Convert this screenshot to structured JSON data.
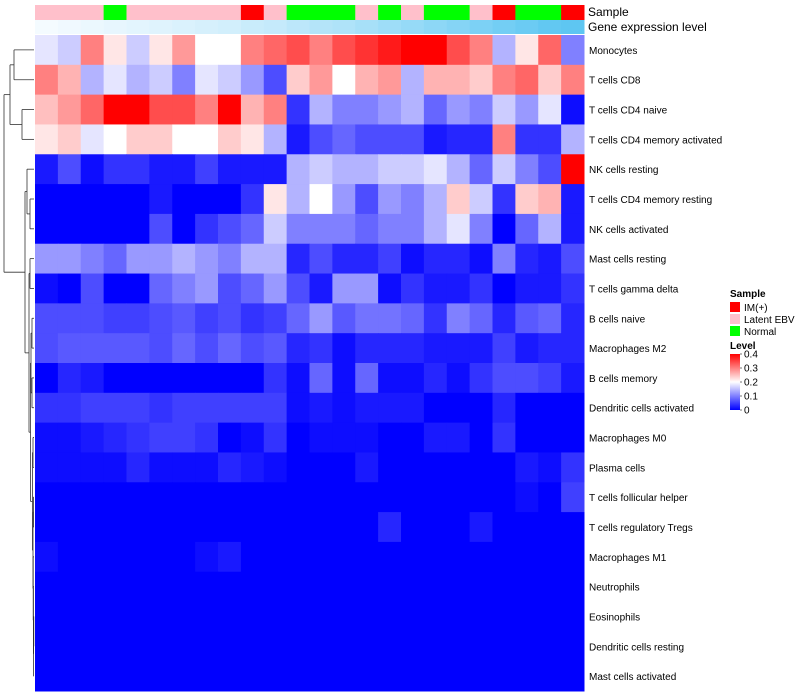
{
  "chart_data": {
    "type": "heatmap",
    "annotation_labels": {
      "sample": "Sample",
      "expression": "Gene expression level"
    },
    "columns": [
      {
        "sample": "Latent EBV",
        "expr": 0.05
      },
      {
        "sample": "Latent EBV",
        "expr": 0.06
      },
      {
        "sample": "Latent EBV",
        "expr": 0.07
      },
      {
        "sample": "Normal",
        "expr": 0.08
      },
      {
        "sample": "Latent EBV",
        "expr": 0.09
      },
      {
        "sample": "Latent EBV",
        "expr": 0.1
      },
      {
        "sample": "Latent EBV",
        "expr": 0.11
      },
      {
        "sample": "Latent EBV",
        "expr": 0.12
      },
      {
        "sample": "Latent EBV",
        "expr": 0.13
      },
      {
        "sample": "IM(+)",
        "expr": 0.15
      },
      {
        "sample": "Latent EBV",
        "expr": 0.16
      },
      {
        "sample": "Normal",
        "expr": 0.18
      },
      {
        "sample": "Normal",
        "expr": 0.2
      },
      {
        "sample": "Normal",
        "expr": 0.21
      },
      {
        "sample": "Latent EBV",
        "expr": 0.23
      },
      {
        "sample": "Normal",
        "expr": 0.25
      },
      {
        "sample": "Latent EBV",
        "expr": 0.27
      },
      {
        "sample": "Normal",
        "expr": 0.29
      },
      {
        "sample": "Normal",
        "expr": 0.31
      },
      {
        "sample": "Latent EBV",
        "expr": 0.33
      },
      {
        "sample": "IM(+)",
        "expr": 0.35
      },
      {
        "sample": "Normal",
        "expr": 0.37
      },
      {
        "sample": "Normal",
        "expr": 0.39
      },
      {
        "sample": "IM(+)",
        "expr": 0.4
      }
    ],
    "rows": [
      "Monocytes",
      "T cells CD8",
      "T cells CD4 naive",
      "T cells CD4 memory activated",
      "NK cells resting",
      "T cells CD4 memory resting",
      "NK cells activated",
      "Mast cells resting",
      "T cells gamma delta",
      "B cells naive",
      "Macrophages M2",
      "B cells memory",
      "Dendritic cells activated",
      "Macrophages M0",
      "Plasma cells",
      "T cells follicular helper",
      "T cells regulatory  Tregs",
      "Macrophages M1",
      "Neutrophils",
      "Eosinophils",
      "Dendritic cells resting",
      "Mast cells activated"
    ],
    "values": [
      [
        0.18,
        0.16,
        0.3,
        0.22,
        0.16,
        0.22,
        0.28,
        0.2,
        0.2,
        0.3,
        0.32,
        0.34,
        0.3,
        0.34,
        0.36,
        0.38,
        0.4,
        0.4,
        0.34,
        0.3,
        0.14,
        0.22,
        0.32,
        0.1
      ],
      [
        0.3,
        0.26,
        0.14,
        0.18,
        0.14,
        0.16,
        0.1,
        0.18,
        0.16,
        0.12,
        0.06,
        0.24,
        0.28,
        0.2,
        0.26,
        0.28,
        0.14,
        0.26,
        0.26,
        0.24,
        0.3,
        0.32,
        0.24,
        0.3
      ],
      [
        0.25,
        0.28,
        0.32,
        0.4,
        0.4,
        0.34,
        0.34,
        0.3,
        0.4,
        0.26,
        0.3,
        0.04,
        0.14,
        0.1,
        0.1,
        0.12,
        0.14,
        0.08,
        0.12,
        0.1,
        0.16,
        0.12,
        0.18,
        0.01
      ],
      [
        0.22,
        0.24,
        0.18,
        0.2,
        0.24,
        0.24,
        0.2,
        0.2,
        0.24,
        0.22,
        0.14,
        0.02,
        0.06,
        0.08,
        0.06,
        0.06,
        0.06,
        0.02,
        0.03,
        0.03,
        0.3,
        0.04,
        0.04,
        0.14
      ],
      [
        0.02,
        0.06,
        0.01,
        0.04,
        0.04,
        0.02,
        0.02,
        0.05,
        0.02,
        0.02,
        0.02,
        0.14,
        0.16,
        0.14,
        0.14,
        0.16,
        0.16,
        0.18,
        0.14,
        0.08,
        0.16,
        0.1,
        0.06,
        0.4
      ],
      [
        0.0,
        0.0,
        0.0,
        0.0,
        0.0,
        0.02,
        0.0,
        0.0,
        0.0,
        0.04,
        0.22,
        0.14,
        0.2,
        0.12,
        0.06,
        0.12,
        0.1,
        0.14,
        0.24,
        0.16,
        0.04,
        0.24,
        0.26,
        0.02
      ],
      [
        0.0,
        0.0,
        0.0,
        0.0,
        0.0,
        0.06,
        0.0,
        0.04,
        0.06,
        0.08,
        0.16,
        0.1,
        0.1,
        0.1,
        0.08,
        0.1,
        0.1,
        0.14,
        0.18,
        0.1,
        0.0,
        0.08,
        0.14,
        0.02
      ],
      [
        0.12,
        0.12,
        0.1,
        0.08,
        0.12,
        0.12,
        0.14,
        0.12,
        0.1,
        0.14,
        0.14,
        0.03,
        0.06,
        0.03,
        0.03,
        0.05,
        0.01,
        0.03,
        0.03,
        0.01,
        0.1,
        0.03,
        0.02,
        0.06
      ],
      [
        0.01,
        0.0,
        0.06,
        0.0,
        0.0,
        0.08,
        0.1,
        0.12,
        0.06,
        0.08,
        0.12,
        0.06,
        0.02,
        0.12,
        0.12,
        0.01,
        0.04,
        0.02,
        0.02,
        0.04,
        0.0,
        0.02,
        0.02,
        0.04
      ],
      [
        0.06,
        0.06,
        0.06,
        0.05,
        0.05,
        0.06,
        0.07,
        0.05,
        0.06,
        0.04,
        0.05,
        0.08,
        0.12,
        0.07,
        0.09,
        0.09,
        0.08,
        0.04,
        0.1,
        0.08,
        0.03,
        0.07,
        0.08,
        0.03
      ],
      [
        0.06,
        0.07,
        0.07,
        0.07,
        0.07,
        0.06,
        0.08,
        0.06,
        0.08,
        0.06,
        0.07,
        0.03,
        0.04,
        0.01,
        0.03,
        0.03,
        0.03,
        0.02,
        0.02,
        0.02,
        0.05,
        0.02,
        0.03,
        0.03
      ],
      [
        0.0,
        0.03,
        0.02,
        0.0,
        0.0,
        0.0,
        0.0,
        0.0,
        0.0,
        0.0,
        0.04,
        0.01,
        0.08,
        0.01,
        0.08,
        0.01,
        0.01,
        0.03,
        0.01,
        0.04,
        0.06,
        0.06,
        0.05,
        0.02
      ],
      [
        0.04,
        0.04,
        0.05,
        0.05,
        0.05,
        0.04,
        0.05,
        0.05,
        0.05,
        0.05,
        0.05,
        0.01,
        0.02,
        0.01,
        0.02,
        0.02,
        0.02,
        0.0,
        0.0,
        0.0,
        0.03,
        0.0,
        0.0,
        0.0
      ],
      [
        0.01,
        0.01,
        0.02,
        0.03,
        0.04,
        0.05,
        0.05,
        0.04,
        0.0,
        0.01,
        0.04,
        0.0,
        0.01,
        0.01,
        0.01,
        0.0,
        0.0,
        0.02,
        0.02,
        0.0,
        0.04,
        0.0,
        0.0,
        0.0
      ],
      [
        0.01,
        0.01,
        0.01,
        0.01,
        0.03,
        0.01,
        0.01,
        0.01,
        0.03,
        0.02,
        0.01,
        0.0,
        0.0,
        0.0,
        0.02,
        0.0,
        0.0,
        0.0,
        0.0,
        0.0,
        0.0,
        0.02,
        0.01,
        0.04
      ],
      [
        0.0,
        0.0,
        0.0,
        0.0,
        0.0,
        0.0,
        0.0,
        0.0,
        0.0,
        0.0,
        0.0,
        0.0,
        0.0,
        0.0,
        0.0,
        0.0,
        0.0,
        0.0,
        0.0,
        0.0,
        0.0,
        0.01,
        0.0,
        0.05
      ],
      [
        0.0,
        0.0,
        0.0,
        0.0,
        0.0,
        0.0,
        0.0,
        0.0,
        0.0,
        0.0,
        0.0,
        0.0,
        0.0,
        0.0,
        0.0,
        0.03,
        0.0,
        0.0,
        0.0,
        0.02,
        0.0,
        0.0,
        0.0,
        0.0
      ],
      [
        0.01,
        0.0,
        0.0,
        0.0,
        0.0,
        0.0,
        0.0,
        0.01,
        0.02,
        0.0,
        0.0,
        0.0,
        0.0,
        0.0,
        0.0,
        0.0,
        0.0,
        0.0,
        0.0,
        0.0,
        0.0,
        0.0,
        0.0,
        0.0
      ],
      [
        0.0,
        0.0,
        0.0,
        0.0,
        0.0,
        0.0,
        0.0,
        0.0,
        0.0,
        0.0,
        0.0,
        0.0,
        0.0,
        0.0,
        0.0,
        0.0,
        0.0,
        0.0,
        0.0,
        0.0,
        0.0,
        0.0,
        0.0,
        0.0
      ],
      [
        0.0,
        0.0,
        0.0,
        0.0,
        0.0,
        0.0,
        0.0,
        0.0,
        0.0,
        0.0,
        0.0,
        0.0,
        0.0,
        0.0,
        0.0,
        0.0,
        0.0,
        0.0,
        0.0,
        0.0,
        0.0,
        0.0,
        0.0,
        0.0
      ],
      [
        0.0,
        0.0,
        0.0,
        0.0,
        0.0,
        0.0,
        0.0,
        0.0,
        0.0,
        0.0,
        0.0,
        0.0,
        0.0,
        0.0,
        0.0,
        0.0,
        0.0,
        0.0,
        0.0,
        0.0,
        0.0,
        0.0,
        0.0,
        0.0
      ],
      [
        0.0,
        0.0,
        0.0,
        0.0,
        0.0,
        0.0,
        0.0,
        0.0,
        0.0,
        0.0,
        0.0,
        0.0,
        0.0,
        0.0,
        0.0,
        0.0,
        0.0,
        0.0,
        0.0,
        0.0,
        0.0,
        0.0,
        0.0,
        0.0
      ]
    ],
    "color_scale": {
      "min": 0,
      "mid": 0.2,
      "max": 0.4,
      "low": "#0000ff",
      "midColor": "#ffffff",
      "high": "#ff0000"
    },
    "legend_sample": {
      "title": "Sample",
      "entries": [
        {
          "label": "IM(+)",
          "color": "#ff0000"
        },
        {
          "label": "Latent EBV",
          "color": "#ffc0cb"
        },
        {
          "label": "Normal",
          "color": "#00ff00"
        }
      ]
    },
    "legend_level": {
      "title": "Level",
      "ticks": [
        {
          "value": 0.4,
          "label": "0.4"
        },
        {
          "value": 0.3,
          "label": "0.3"
        },
        {
          "value": 0.2,
          "label": "0.2"
        },
        {
          "value": 0.1,
          "label": "0.1"
        },
        {
          "value": 0,
          "label": "0"
        }
      ]
    },
    "expression_colors": {
      "low": "#f4fbff",
      "high": "#5ec6f2"
    },
    "dendrogram": "rows"
  }
}
